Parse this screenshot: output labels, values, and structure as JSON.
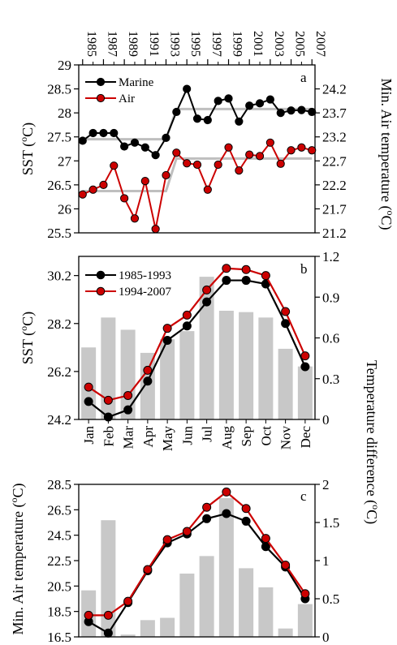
{
  "figure": {
    "top_year_labels": [
      "1985",
      "1987",
      "1989",
      "1991",
      "1993",
      "1995",
      "1997",
      "1999",
      "2001",
      "2003",
      "2005",
      "2007"
    ],
    "month_labels": [
      "Jan",
      "Feb",
      "Mar",
      "Apr",
      "May",
      "Jun",
      "Jul",
      "Aug",
      "Sep",
      "Oct",
      "Nov",
      "Dec"
    ],
    "right_shared_axis_label": "Temperature difference  (°C)"
  },
  "chart_data": [
    {
      "panel": "a",
      "type": "line",
      "x": [
        1985,
        1986,
        1987,
        1988,
        1989,
        1990,
        1991,
        1992,
        1993,
        1994,
        1995,
        1996,
        1997,
        1998,
        1999,
        2000,
        2001,
        2002,
        2003,
        2004,
        2005,
        2006,
        2007
      ],
      "series": [
        {
          "name": "Marine",
          "axis": "left",
          "color": "#000000",
          "values": [
            27.42,
            27.58,
            27.58,
            27.58,
            27.3,
            27.38,
            27.28,
            27.12,
            27.48,
            28.02,
            28.5,
            27.88,
            27.85,
            28.25,
            28.3,
            27.82,
            28.15,
            28.2,
            28.28,
            28.0,
            28.05,
            28.06,
            28.02
          ]
        },
        {
          "name": "Air",
          "axis": "right",
          "color": "#cc0000",
          "values": [
            22.0,
            22.1,
            22.2,
            22.6,
            21.92,
            21.5,
            22.28,
            21.28,
            22.4,
            22.87,
            22.65,
            22.62,
            22.1,
            22.62,
            22.98,
            22.5,
            22.83,
            22.8,
            23.08,
            22.64,
            22.92,
            22.98,
            22.92
          ]
        },
        {
          "name": "",
          "axis": "left",
          "color": "#bfbfbf",
          "style": "step",
          "values": [
            27.45,
            27.45,
            27.45,
            27.45,
            27.45,
            27.45,
            27.45,
            27.45,
            27.45,
            28.08,
            28.08,
            28.08,
            28.08,
            28.08,
            28.08,
            28.08,
            28.08,
            28.08,
            28.08,
            28.08,
            28.08,
            28.08,
            28.08
          ]
        },
        {
          "name": "",
          "axis": "right",
          "color": "#bfbfbf",
          "style": "step",
          "values": [
            22.07,
            22.07,
            22.07,
            22.07,
            22.07,
            22.07,
            22.07,
            22.07,
            22.07,
            22.75,
            22.75,
            22.75,
            22.75,
            22.75,
            22.75,
            22.75,
            22.75,
            22.75,
            22.75,
            22.75,
            22.75,
            22.75,
            22.75
          ]
        }
      ],
      "ylabel_left": "SST (°C)",
      "ylabel_right": "Min. Air temperature  (°C)",
      "ylim_left": [
        25.5,
        29
      ],
      "yticks_left": [
        "25.5",
        "26",
        "26.5",
        "27",
        "27.5",
        "28",
        "28.5",
        "29"
      ],
      "ylim_right": [
        21.2,
        24.7
      ],
      "yticks_right": [
        "21.2",
        "21.7",
        "22.2",
        "22.7",
        "23.2",
        "23.7",
        "24.2"
      ],
      "legend_loc": "upper-left"
    },
    {
      "panel": "b",
      "type": "bar+line",
      "categories": [
        "Jan",
        "Feb",
        "Mar",
        "Apr",
        "May",
        "Jun",
        "Jul",
        "Aug",
        "Sep",
        "Oct",
        "Nov",
        "Dec"
      ],
      "bars": {
        "axis": "right",
        "color": "#c8c8c8",
        "values": [
          0.53,
          0.75,
          0.66,
          0.49,
          0.59,
          0.65,
          1.05,
          0.8,
          0.79,
          0.75,
          0.52,
          0.39
        ]
      },
      "series": [
        {
          "name": "1985-1993",
          "axis": "left",
          "color": "#000000",
          "values": [
            24.95,
            24.3,
            24.6,
            25.8,
            27.5,
            28.1,
            29.1,
            30.0,
            30.0,
            29.85,
            28.2,
            26.4
          ]
        },
        {
          "name": "1994-2007",
          "axis": "left",
          "color": "#cc0000",
          "values": [
            25.55,
            25.0,
            25.2,
            26.25,
            28.0,
            28.55,
            29.6,
            30.5,
            30.45,
            30.2,
            28.7,
            26.85
          ]
        }
      ],
      "ylabel_left": "SST (°C)",
      "ylim_left": [
        24.2,
        31.0
      ],
      "yticks_left": [
        "24.2",
        "26.2",
        "28.2",
        "30.2"
      ],
      "ylim_right": [
        0,
        1.2
      ],
      "yticks_right": [
        "0",
        "0.3",
        "0.6",
        "0.9",
        "1.2"
      ],
      "legend_loc": "upper-left"
    },
    {
      "panel": "c",
      "type": "bar+line",
      "categories": [
        "Jan",
        "Feb",
        "Mar",
        "Apr",
        "May",
        "Jun",
        "Jul",
        "Aug",
        "Sep",
        "Oct",
        "Nov",
        "Dec"
      ],
      "bars": {
        "axis": "right",
        "color": "#c8c8c8",
        "values": [
          0.61,
          1.53,
          0.03,
          0.22,
          0.25,
          0.83,
          1.06,
          1.82,
          0.9,
          0.65,
          0.11,
          0.43
        ]
      },
      "series": [
        {
          "name": "",
          "axis": "left",
          "color": "#000000",
          "values": [
            17.7,
            16.8,
            19.2,
            21.7,
            23.9,
            24.6,
            25.8,
            26.2,
            25.6,
            23.6,
            22.0,
            19.5
          ]
        },
        {
          "name": "",
          "axis": "left",
          "color": "#cc0000",
          "values": [
            18.2,
            18.2,
            19.3,
            21.8,
            24.15,
            24.8,
            26.7,
            27.9,
            26.6,
            24.25,
            22.15,
            19.9
          ]
        }
      ],
      "ylabel_left": "Min. Air temperature  (°C)",
      "ylim_left": [
        16.5,
        28.5
      ],
      "yticks_left": [
        "16.5",
        "18.5",
        "20.5",
        "22.5",
        "24.5",
        "26.5",
        "28.5"
      ],
      "ylim_right": [
        0,
        2
      ],
      "yticks_right": [
        "0",
        "0.5",
        "1",
        "1.5",
        "2"
      ]
    }
  ]
}
